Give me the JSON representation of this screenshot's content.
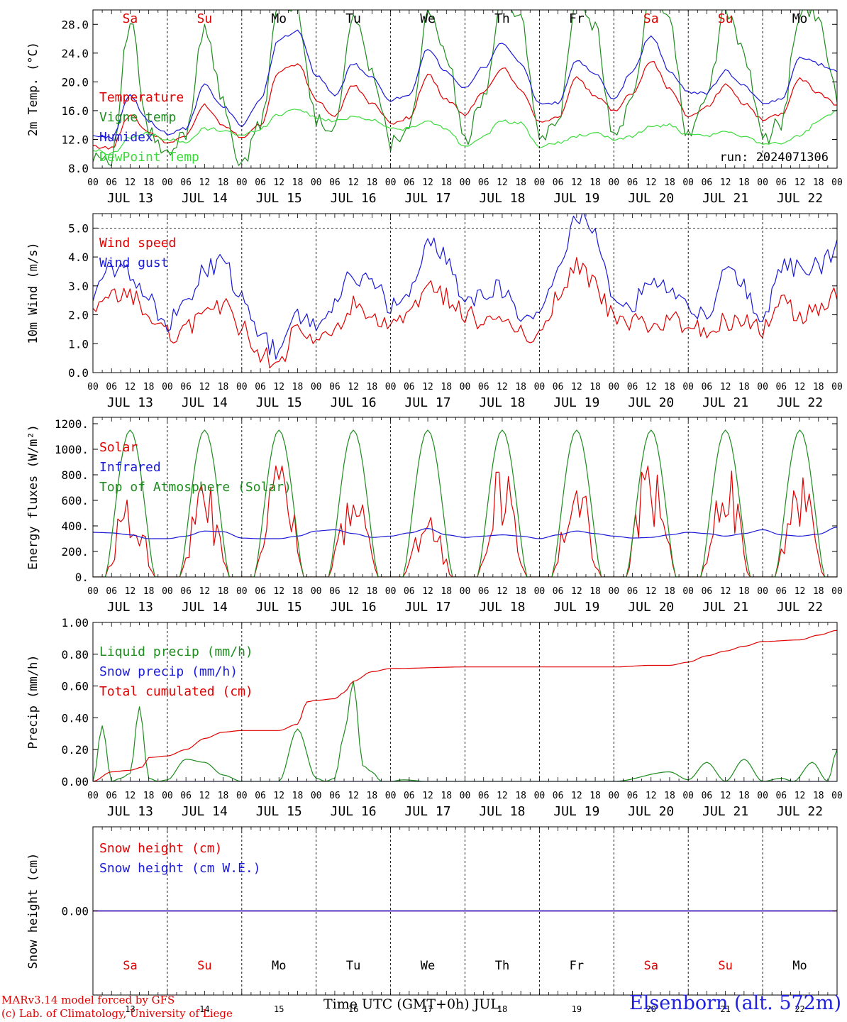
{
  "footer": {
    "model": "MARv3.14 model forced by GFS",
    "copyright": "(c) Lab. of Climatology, University of Liege",
    "xlabel": "Time UTC (GMT+0h) JUL",
    "station": "Elsenborn (alt. 572m)"
  },
  "colors": {
    "red": "#e00000",
    "green": "#1e8c1e",
    "blue": "#1a1ad8",
    "light_green": "#3cdc3c",
    "purple": "#7a2a8c",
    "weekend": "#e00000",
    "weekday": "#000000"
  },
  "days": [
    {
      "abbr": "Sa",
      "weekend": true,
      "date": "JUL 13",
      "num": "13"
    },
    {
      "abbr": "Su",
      "weekend": true,
      "date": "JUL 14",
      "num": "14"
    },
    {
      "abbr": "Mo",
      "weekend": false,
      "date": "JUL 15",
      "num": "15"
    },
    {
      "abbr": "Tu",
      "weekend": false,
      "date": "JUL 16",
      "num": "16"
    },
    {
      "abbr": "We",
      "weekend": false,
      "date": "JUL 17",
      "num": "17"
    },
    {
      "abbr": "Th",
      "weekend": false,
      "date": "JUL 18",
      "num": "18"
    },
    {
      "abbr": "Fr",
      "weekend": false,
      "date": "JUL 19",
      "num": "19"
    },
    {
      "abbr": "Sa",
      "weekend": true,
      "date": "JUL 20",
      "num": "20"
    },
    {
      "abbr": "Su",
      "weekend": true,
      "date": "JUL 21",
      "num": "21"
    },
    {
      "abbr": "Mo",
      "weekend": false,
      "date": "JUL 22",
      "num": "22"
    }
  ],
  "hour_labels": [
    "00",
    "06",
    "12",
    "18"
  ],
  "chart_data": [
    {
      "type": "line",
      "id": "temperature",
      "ylabel": "2m Temp. (°C)",
      "ylim": [
        8,
        30
      ],
      "yticks": [
        "8.0",
        "12.0",
        "16.0",
        "20.0",
        "24.0",
        "28.0"
      ],
      "ytick_values": [
        8,
        12,
        16,
        20,
        24,
        28
      ],
      "annotation": "run: 2024071306",
      "legend": [
        "Temperature",
        "Vigne temp",
        "Humidex",
        "DewPoint Temp"
      ],
      "x_hours": [
        0,
        6,
        12,
        18,
        24,
        30,
        36,
        42,
        48,
        54,
        60,
        66,
        72,
        78,
        84,
        90,
        96,
        102,
        108,
        114,
        120,
        126,
        132,
        138,
        144,
        150,
        156,
        162,
        168,
        174,
        180,
        186,
        192,
        198,
        204,
        210,
        216,
        222,
        228,
        234,
        240
      ],
      "series": [
        {
          "name": "Temperature",
          "color": "red",
          "values": [
            11.0,
            10.8,
            15.5,
            13.0,
            11.5,
            12.5,
            16.8,
            14.0,
            12.4,
            14.0,
            21.5,
            22.5,
            17.5,
            15.2,
            19.5,
            17.0,
            14.3,
            15.0,
            21.0,
            17.5,
            15.5,
            18.5,
            22.0,
            19.0,
            14.5,
            15.0,
            20.5,
            18.0,
            16.0,
            18.5,
            23.0,
            19.0,
            15.2,
            16.5,
            19.5,
            17.0,
            14.8,
            15.5,
            20.5,
            18.5,
            16.8
          ]
        },
        {
          "name": "Vigne temp",
          "color": "green",
          "values": [
            10.0,
            9.5,
            28.0,
            13.0,
            9.5,
            13.0,
            28.0,
            17.0,
            8.0,
            14.0,
            31.0,
            30.0,
            14.5,
            14.0,
            29.0,
            22.0,
            11.5,
            14.0,
            29.0,
            24.0,
            11.5,
            18.0,
            32.0,
            29.0,
            12.0,
            14.5,
            31.0,
            28.0,
            12.0,
            17.5,
            33.0,
            28.0,
            12.0,
            18.0,
            30.0,
            24.0,
            12.0,
            14.5,
            30.0,
            29.0,
            18.0
          ]
        },
        {
          "name": "Humidex",
          "color": "blue",
          "values": [
            12.5,
            12.3,
            18.0,
            14.5,
            12.8,
            13.5,
            19.5,
            16.5,
            14.0,
            17.5,
            26.0,
            27.0,
            21.0,
            18.0,
            22.5,
            20.5,
            17.5,
            18.0,
            24.5,
            21.5,
            19.0,
            22.0,
            25.5,
            22.5,
            17.0,
            17.0,
            23.0,
            21.0,
            17.5,
            21.5,
            26.5,
            21.5,
            18.5,
            18.5,
            21.5,
            19.5,
            17.0,
            17.5,
            23.5,
            22.5,
            21.5
          ]
        },
        {
          "name": "DewPoint Temp",
          "color": "light_green",
          "values": [
            10.5,
            10.0,
            12.3,
            12.8,
            12.0,
            11.5,
            13.5,
            13.3,
            12.5,
            13.5,
            15.5,
            16.3,
            15.0,
            14.5,
            15.2,
            14.8,
            13.5,
            13.5,
            14.5,
            13.5,
            11.0,
            12.5,
            14.5,
            14.2,
            11.0,
            11.5,
            12.5,
            12.8,
            12.0,
            12.5,
            13.8,
            14.0,
            12.5,
            12.5,
            13.0,
            12.5,
            11.5,
            11.5,
            12.5,
            14.5,
            16.0
          ]
        }
      ]
    },
    {
      "type": "line",
      "id": "wind",
      "ylabel": "10m Wind (m/s)",
      "ylim": [
        0,
        5.5
      ],
      "yticks": [
        "0.0",
        "1.0",
        "2.0",
        "3.0",
        "4.0",
        "5.0"
      ],
      "ytick_values": [
        0,
        1,
        2,
        3,
        4,
        5
      ],
      "legend": [
        "Wind speed",
        "Wind gust"
      ],
      "x_hours": [
        0,
        6,
        12,
        18,
        24,
        30,
        36,
        42,
        48,
        54,
        60,
        66,
        72,
        78,
        84,
        90,
        96,
        102,
        108,
        114,
        120,
        126,
        132,
        138,
        144,
        150,
        156,
        162,
        168,
        174,
        180,
        186,
        192,
        198,
        204,
        210,
        216,
        222,
        228,
        234,
        240
      ],
      "series": [
        {
          "name": "Wind speed",
          "color": "red",
          "values": [
            2.0,
            2.6,
            2.7,
            2.0,
            1.3,
            1.5,
            2.2,
            2.3,
            1.5,
            0.7,
            0.3,
            1.5,
            1.0,
            1.5,
            2.3,
            1.8,
            1.5,
            2.0,
            3.0,
            2.6,
            2.0,
            1.8,
            1.7,
            1.3,
            1.4,
            2.6,
            3.8,
            3.0,
            1.9,
            1.7,
            1.6,
            1.8,
            1.7,
            1.4,
            1.8,
            1.8,
            1.5,
            2.4,
            2.0,
            2.3,
            2.7
          ]
        },
        {
          "name": "Wind gust",
          "color": "blue",
          "values": [
            2.7,
            3.6,
            3.5,
            2.5,
            1.7,
            2.3,
            3.6,
            3.8,
            2.5,
            1.2,
            0.7,
            2.0,
            1.6,
            2.4,
            3.4,
            3.1,
            2.3,
            2.6,
            4.6,
            4.0,
            2.5,
            2.8,
            2.9,
            2.1,
            2.0,
            3.7,
            5.4,
            4.9,
            2.6,
            2.4,
            3.3,
            2.8,
            2.4,
            1.8,
            3.6,
            3.0,
            1.6,
            3.8,
            3.6,
            3.7,
            4.3
          ]
        }
      ]
    },
    {
      "type": "line",
      "id": "energy",
      "ylabel": "Energy fluxes (W/m²)",
      "ylim": [
        0,
        1250
      ],
      "yticks": [
        "0.",
        "200.",
        "400.",
        "600.",
        "800.",
        "1000.",
        "1200."
      ],
      "ytick_values": [
        0,
        200,
        400,
        600,
        800,
        1000,
        1200
      ],
      "legend": [
        "Solar",
        "Infrared",
        "Top of Atmosphere (Solar)"
      ],
      "series": [
        {
          "name": "Solar",
          "color": "red",
          "day_peaks": [
            700,
            720,
            870,
            700,
            480,
            820,
            720,
            870,
            830,
            800
          ]
        },
        {
          "name": "Infrared",
          "color": "blue",
          "values": [
            350,
            345,
            330,
            300,
            300,
            320,
            360,
            355,
            305,
            300,
            300,
            320,
            360,
            370,
            340,
            310,
            320,
            345,
            380,
            330,
            310,
            320,
            330,
            320,
            300,
            330,
            360,
            340,
            320,
            305,
            310,
            330,
            350,
            340,
            320,
            340,
            370,
            330,
            320,
            335,
            390
          ],
          "x_hours": [
            0,
            6,
            12,
            18,
            24,
            30,
            36,
            42,
            48,
            54,
            60,
            66,
            72,
            78,
            84,
            90,
            96,
            102,
            108,
            114,
            120,
            126,
            132,
            138,
            144,
            150,
            156,
            162,
            168,
            174,
            180,
            186,
            192,
            198,
            204,
            210,
            216,
            222,
            228,
            234,
            240
          ]
        },
        {
          "name": "Top of Atmosphere (Solar)",
          "color": "green",
          "day_peaks": [
            1150,
            1150,
            1150,
            1150,
            1150,
            1150,
            1150,
            1150,
            1150,
            1150
          ]
        }
      ]
    },
    {
      "type": "line",
      "id": "precip",
      "ylabel": "Precip (mm/h)",
      "ylim": [
        0,
        1.0
      ],
      "yticks": [
        "0.00",
        "0.20",
        "0.40",
        "0.60",
        "0.80",
        "1.00"
      ],
      "ytick_values": [
        0,
        0.2,
        0.4,
        0.6,
        0.8,
        1.0
      ],
      "legend": [
        "Liquid precip (mm/h)",
        "Snow precip (mm/h)",
        "Total cumulated (cm)"
      ],
      "series": [
        {
          "name": "Liquid precip (mm/h)",
          "color": "green",
          "x_hours": [
            0,
            3,
            6,
            9,
            12,
            15,
            18,
            21,
            24,
            30,
            36,
            42,
            48,
            54,
            60,
            66,
            72,
            75,
            78,
            81,
            84,
            87,
            90,
            93,
            96,
            100,
            108,
            120,
            144,
            168,
            186,
            192,
            198,
            204,
            210,
            216,
            222,
            226,
            232,
            237,
            240
          ],
          "values": [
            0,
            0.35,
            0.0,
            0.02,
            0.05,
            0.47,
            0.02,
            0.0,
            0.01,
            0.14,
            0.12,
            0.04,
            0.0,
            0.0,
            0.0,
            0.33,
            0.02,
            0.0,
            0.02,
            0.3,
            0.63,
            0.1,
            0.06,
            0.0,
            0.0,
            0.01,
            0.0,
            0.0,
            0.0,
            0.0,
            0.06,
            0.01,
            0.12,
            0.0,
            0.14,
            0.0,
            0.02,
            0.0,
            0.12,
            0.0,
            0.2
          ]
        },
        {
          "name": "Snow precip (mm/h)",
          "color": "blue",
          "x_hours": [
            0,
            240
          ],
          "values": [
            0,
            0
          ]
        },
        {
          "name": "Total cumulated (cm)",
          "color": "red",
          "x_hours": [
            0,
            6,
            12,
            16,
            18,
            24,
            30,
            36,
            42,
            48,
            60,
            66,
            69,
            72,
            78,
            81,
            84,
            90,
            96,
            120,
            144,
            168,
            180,
            186,
            192,
            198,
            204,
            210,
            216,
            228,
            234,
            240
          ],
          "values": [
            0.0,
            0.06,
            0.07,
            0.09,
            0.15,
            0.16,
            0.2,
            0.27,
            0.31,
            0.32,
            0.32,
            0.36,
            0.5,
            0.51,
            0.52,
            0.56,
            0.63,
            0.69,
            0.71,
            0.72,
            0.72,
            0.72,
            0.73,
            0.73,
            0.75,
            0.79,
            0.82,
            0.85,
            0.88,
            0.89,
            0.92,
            0.95
          ]
        }
      ]
    },
    {
      "type": "line",
      "id": "snow",
      "ylabel": "Snow height (cm)",
      "ylim": [
        -1,
        1
      ],
      "yticks": [
        "0.00"
      ],
      "ytick_values": [
        0
      ],
      "legend": [
        "Snow height (cm)",
        "Snow height (cm W.E.)"
      ],
      "series": [
        {
          "name": "Snow height (cm)",
          "color": "red",
          "x_hours": [
            0,
            240
          ],
          "values": [
            0,
            0
          ]
        },
        {
          "name": "Snow height (cm W.E.)",
          "color": "blue",
          "x_hours": [
            0,
            240
          ],
          "values": [
            0,
            0
          ]
        }
      ]
    }
  ]
}
